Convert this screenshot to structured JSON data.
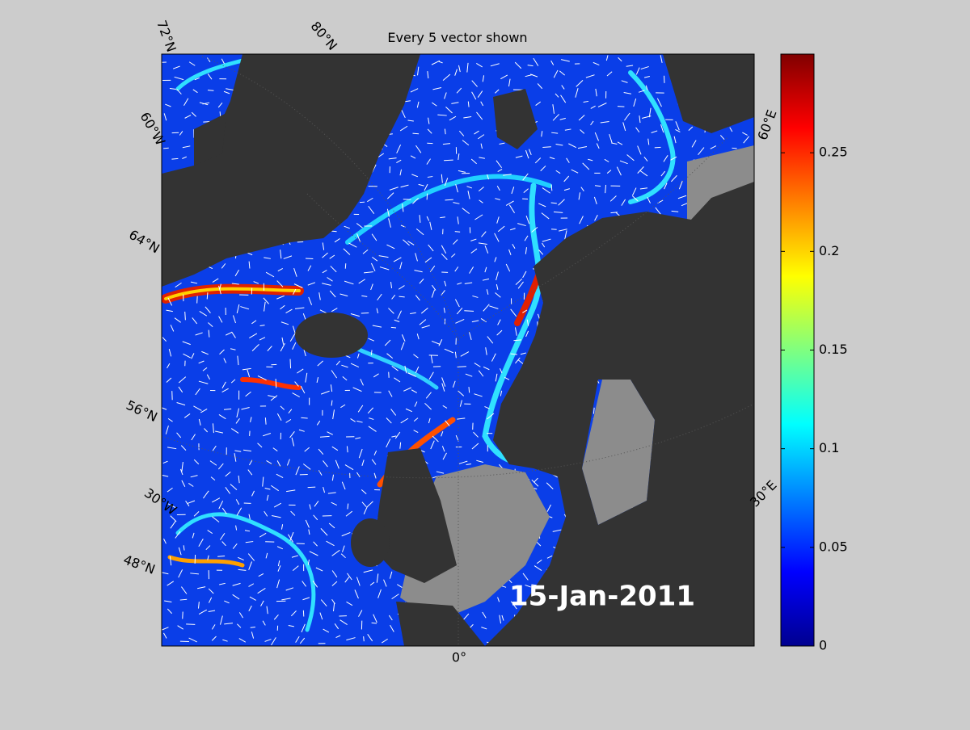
{
  "title": "Every 5 vector shown",
  "date_label": "15-Jan-2011",
  "graticule_labels": [
    "72°N",
    "80°N",
    "60°W",
    "64°N",
    "56°N",
    "30°W",
    "48°N",
    "0°",
    "30°E",
    "60°E"
  ],
  "colorbar": {
    "lim": [
      0,
      0.3
    ],
    "ticks": [
      0,
      0.05,
      0.1,
      0.15,
      0.2,
      0.25
    ],
    "colormap": "jet"
  }
}
